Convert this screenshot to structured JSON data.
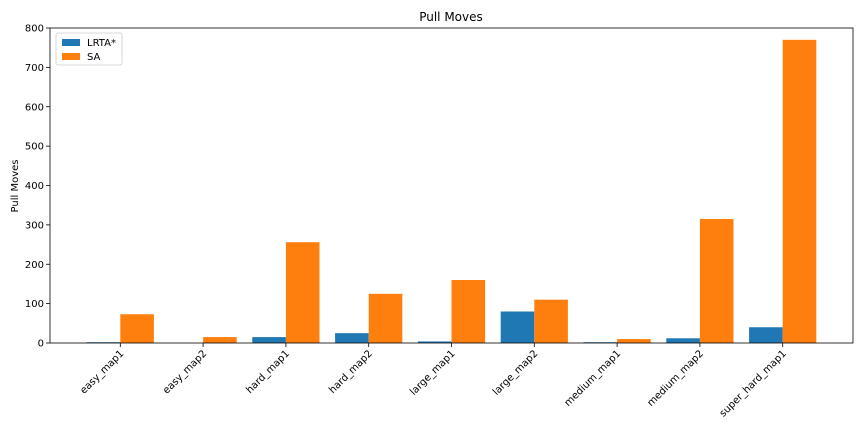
{
  "chart_data": {
    "type": "bar",
    "title": "Pull Moves",
    "xlabel": "",
    "ylabel": "Pull Moves",
    "categories": [
      "easy_map1",
      "easy_map2",
      "hard_map1",
      "hard_map2",
      "large_map1",
      "large_map2",
      "medium_map1",
      "medium_map2",
      "super_hard_map1"
    ],
    "series": [
      {
        "name": "LRTA*",
        "color": "#1f77b4",
        "values": [
          2,
          0,
          15,
          25,
          4,
          80,
          2,
          12,
          40
        ]
      },
      {
        "name": "SA",
        "color": "#ff7f0e",
        "values": [
          73,
          15,
          256,
          125,
          160,
          110,
          10,
          315,
          770
        ]
      }
    ],
    "ylim": [
      0,
      800
    ],
    "yticks": [
      0,
      100,
      200,
      300,
      400,
      500,
      600,
      700,
      800
    ],
    "legend_position": "top-left",
    "grid": false
  }
}
